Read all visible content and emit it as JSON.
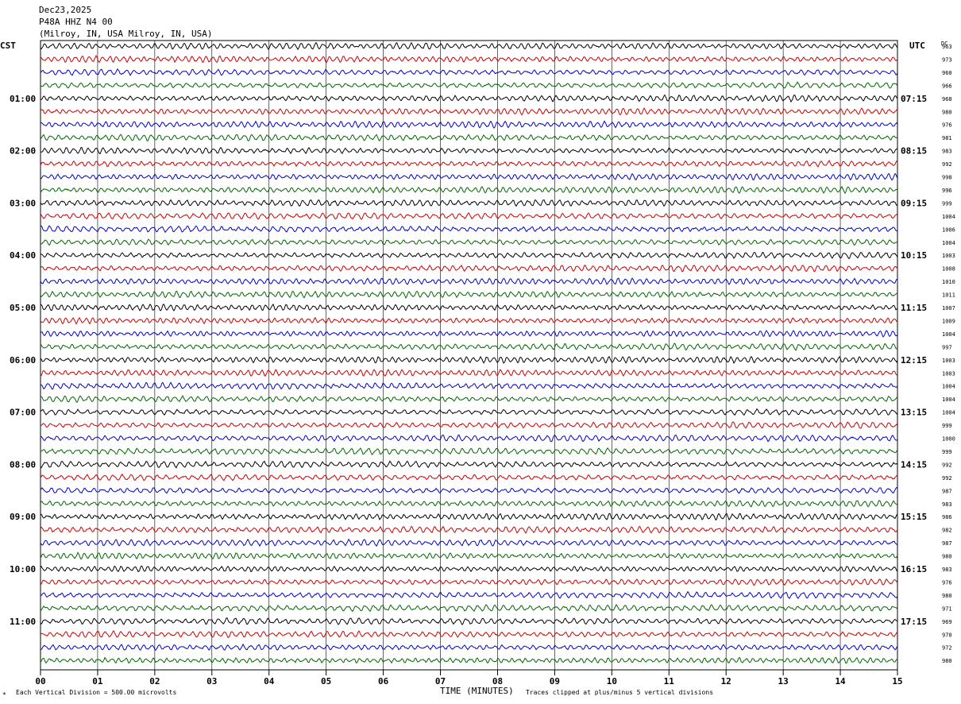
{
  "header": {
    "date": "Dec23,2025",
    "station": "P48A HHZ N4 00",
    "location": "(Milroy, IN, USA Milroy, IN, USA)"
  },
  "labels": {
    "left_zone": "CST",
    "right_zone": "UTC",
    "dc": "DC",
    "x_axis_title": "TIME (MINUTES)",
    "scale_note": "Each Vertical Division =  500.00 microvolts",
    "clip_note": "Traces clipped at plus/minus 5 vertical divisions"
  },
  "colors": {
    "trace_cycle": [
      "#000000",
      "#cc0000",
      "#0000cc",
      "#006600"
    ],
    "grid": "#000000"
  },
  "chart_data": {
    "type": "line",
    "title": "P48A HHZ N4 00",
    "xlabel": "TIME (MINUTES)",
    "ylabel": "",
    "xlim": [
      0,
      15
    ],
    "x_ticks": [
      "00",
      "01",
      "02",
      "03",
      "04",
      "05",
      "06",
      "07",
      "08",
      "09",
      "10",
      "11",
      "12",
      "13",
      "14",
      "15"
    ],
    "rows_per_hour": 4,
    "left_hour_labels": [
      "01:00",
      "02:00",
      "03:00",
      "04:00",
      "05:00",
      "06:00",
      "07:00",
      "08:00",
      "09:00",
      "10:00",
      "11:00"
    ],
    "right_hour_labels": [
      "07:15",
      "08:15",
      "09:15",
      "10:15",
      "11:15",
      "12:15",
      "13:15",
      "14:15",
      "15:15",
      "16:15",
      "17:15"
    ],
    "dc_offsets": [
      963,
      973,
      960,
      966,
      968,
      980,
      976,
      981,
      983,
      992,
      998,
      996,
      999,
      1004,
      1006,
      1004,
      1003,
      1008,
      1010,
      1011,
      1007,
      1009,
      1004,
      997,
      1003,
      1003,
      1004,
      1004,
      1004,
      999,
      1000,
      999,
      992,
      992,
      987,
      983,
      986,
      982,
      987,
      980,
      983,
      976,
      980,
      971,
      969,
      970,
      972,
      980
    ]
  }
}
